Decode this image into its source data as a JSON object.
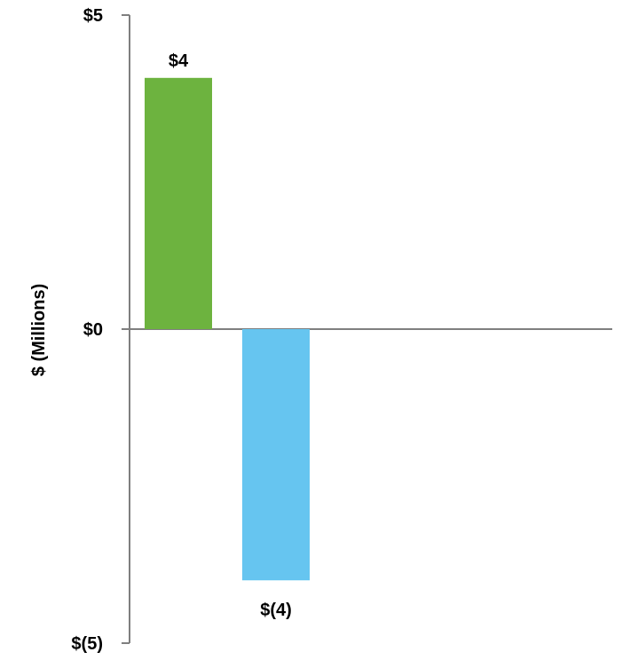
{
  "chart_data": {
    "type": "bar",
    "ylabel": "$ (Millions)",
    "xlabel": "",
    "title": "",
    "ylim": [
      -5,
      5
    ],
    "y_ticks": [
      {
        "value": 5,
        "label": "$5"
      },
      {
        "value": 0,
        "label": "$0"
      },
      {
        "value": -5,
        "label": "$(5)"
      }
    ],
    "bars": [
      {
        "value": 4,
        "label": "$4",
        "color": "#6db33f"
      },
      {
        "value": -4,
        "label": "$(4)",
        "color": "#66c5f0"
      }
    ],
    "legend": false,
    "grid": false
  }
}
